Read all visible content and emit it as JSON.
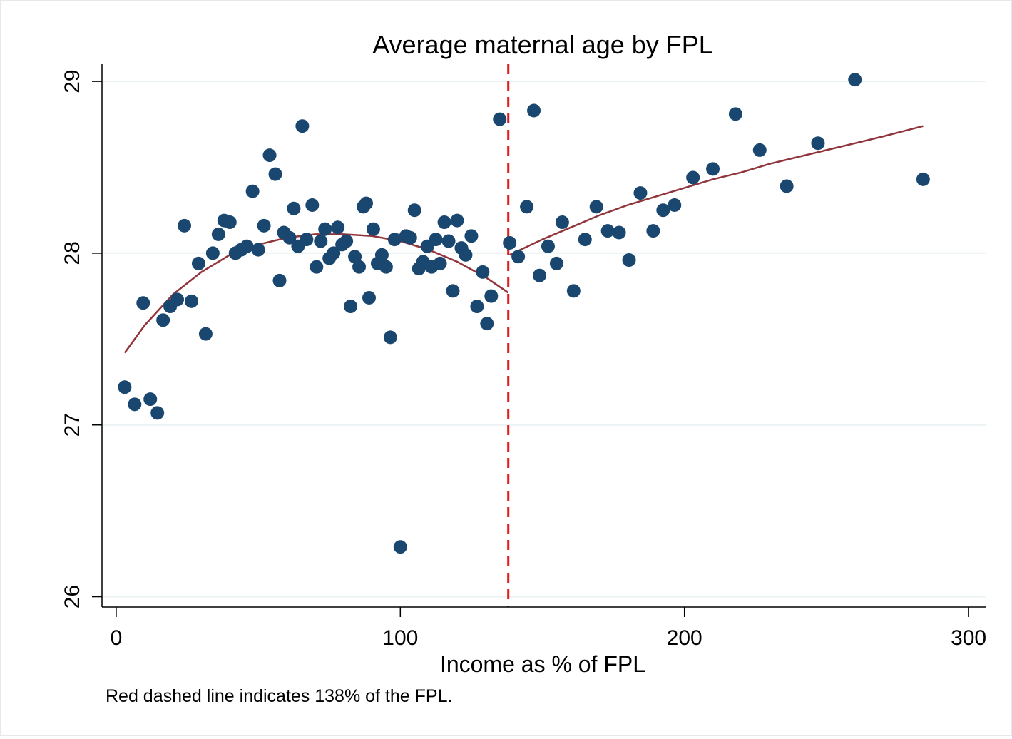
{
  "chart_data": {
    "type": "scatter",
    "title": "Average maternal age by FPL",
    "xlabel": "Income as % of FPL",
    "ylabel": "",
    "note": "Red dashed line indicates 138% of the FPL.",
    "xlim": [
      -5,
      306
    ],
    "ylim": [
      25.94,
      29.1
    ],
    "xticks": [
      0,
      100,
      200,
      300
    ],
    "xtick_labels": [
      "0",
      "100",
      "200",
      "300"
    ],
    "yticks": [
      26,
      27,
      28,
      29
    ],
    "ytick_labels": [
      "26",
      "27",
      "28",
      "29"
    ],
    "grid": true,
    "legend": "none",
    "colors": {
      "points": "#1a476f",
      "fit": "#90353b",
      "cutoff": "#e31a1c",
      "grid": "#eaf2f3"
    },
    "cutoff": {
      "x": 138,
      "style": "dashed"
    },
    "series": [
      {
        "type": "scatter",
        "points": [
          [
            3,
            27.22
          ],
          [
            6.5,
            27.12
          ],
          [
            9.5,
            27.71
          ],
          [
            12,
            27.15
          ],
          [
            14.5,
            27.07
          ],
          [
            16.5,
            27.61
          ],
          [
            19,
            27.69
          ],
          [
            21.5,
            27.73
          ],
          [
            24,
            28.16
          ],
          [
            26.5,
            27.72
          ],
          [
            29,
            27.94
          ],
          [
            31.5,
            27.53
          ],
          [
            34,
            28.0
          ],
          [
            36,
            28.11
          ],
          [
            38,
            28.19
          ],
          [
            40,
            28.18
          ],
          [
            42,
            28.0
          ],
          [
            44,
            28.02
          ],
          [
            46,
            28.04
          ],
          [
            48,
            28.36
          ],
          [
            50,
            28.02
          ],
          [
            52,
            28.16
          ],
          [
            54,
            28.57
          ],
          [
            56,
            28.46
          ],
          [
            57.5,
            27.84
          ],
          [
            59,
            28.12
          ],
          [
            61,
            28.09
          ],
          [
            62.5,
            28.26
          ],
          [
            64,
            28.04
          ],
          [
            65.5,
            28.74
          ],
          [
            67,
            28.08
          ],
          [
            69,
            28.28
          ],
          [
            70.5,
            27.92
          ],
          [
            72,
            28.07
          ],
          [
            73.5,
            28.14
          ],
          [
            75,
            27.97
          ],
          [
            76.5,
            28.0
          ],
          [
            78,
            28.15
          ],
          [
            79.5,
            28.05
          ],
          [
            81,
            28.07
          ],
          [
            82.5,
            27.69
          ],
          [
            84,
            27.98
          ],
          [
            85.5,
            27.92
          ],
          [
            87,
            28.27
          ],
          [
            88,
            28.29
          ],
          [
            89,
            27.74
          ],
          [
            90.5,
            28.14
          ],
          [
            92,
            27.94
          ],
          [
            93.5,
            27.99
          ],
          [
            95,
            27.92
          ],
          [
            96.5,
            27.51
          ],
          [
            98,
            28.08
          ],
          [
            100,
            26.29
          ],
          [
            102,
            28.1
          ],
          [
            103.5,
            28.09
          ],
          [
            105,
            28.25
          ],
          [
            106.5,
            27.91
          ],
          [
            108,
            27.95
          ],
          [
            109.5,
            28.04
          ],
          [
            111,
            27.92
          ],
          [
            112.5,
            28.08
          ],
          [
            114,
            27.94
          ],
          [
            115.5,
            28.18
          ],
          [
            117,
            28.07
          ],
          [
            118.5,
            27.78
          ],
          [
            120,
            28.19
          ],
          [
            121.5,
            28.03
          ],
          [
            123,
            27.99
          ],
          [
            125,
            28.1
          ],
          [
            127,
            27.69
          ],
          [
            129,
            27.89
          ],
          [
            130.5,
            27.59
          ],
          [
            132,
            27.75
          ],
          [
            135,
            28.78
          ],
          [
            138.5,
            28.06
          ],
          [
            141.5,
            27.98
          ],
          [
            144.5,
            28.27
          ],
          [
            147,
            28.83
          ],
          [
            149,
            27.87
          ],
          [
            152,
            28.04
          ],
          [
            155,
            27.94
          ],
          [
            157,
            28.18
          ],
          [
            161,
            27.78
          ],
          [
            165,
            28.08
          ],
          [
            169,
            28.27
          ],
          [
            173,
            28.13
          ],
          [
            177,
            28.12
          ],
          [
            180.5,
            27.96
          ],
          [
            184.5,
            28.35
          ],
          [
            189,
            28.13
          ],
          [
            192.5,
            28.25
          ],
          [
            196.5,
            28.28
          ],
          [
            203,
            28.44
          ],
          [
            210,
            28.49
          ],
          [
            218,
            28.81
          ],
          [
            226.5,
            28.6
          ],
          [
            236,
            28.39
          ],
          [
            247,
            28.64
          ],
          [
            260,
            29.01
          ],
          [
            284,
            28.43
          ]
        ]
      },
      {
        "type": "line",
        "name": "",
        "segment": "below cutoff",
        "x": [
          3,
          10,
          20,
          30,
          40,
          50,
          60,
          70,
          80,
          90,
          100,
          110,
          120,
          130,
          138
        ],
        "y": [
          27.42,
          27.58,
          27.76,
          27.89,
          27.99,
          28.05,
          28.09,
          28.11,
          28.11,
          28.1,
          28.07,
          28.02,
          27.95,
          27.86,
          27.77
        ]
      },
      {
        "type": "line",
        "name": "",
        "segment": "above cutoff",
        "x": [
          138.5,
          150,
          160,
          170,
          180,
          190,
          200,
          210,
          220,
          230,
          240,
          250,
          260,
          270,
          284
        ],
        "y": [
          27.99,
          28.08,
          28.15,
          28.22,
          28.28,
          28.33,
          28.38,
          28.43,
          28.47,
          28.52,
          28.56,
          28.6,
          28.64,
          28.68,
          28.74
        ]
      }
    ]
  }
}
